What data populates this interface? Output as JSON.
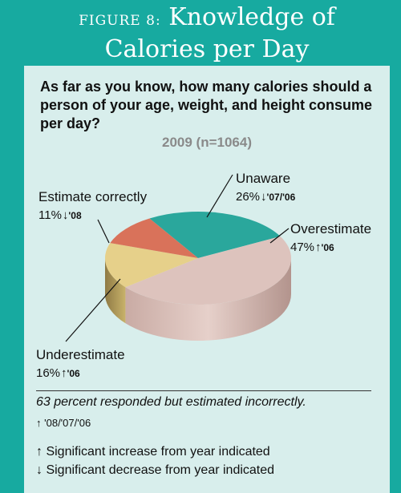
{
  "header": {
    "figure_prefix": "FIGURE 8:",
    "title_line1": "Knowledge of",
    "title_line2": "Calories per Day"
  },
  "question": "As far as you know, how many calories should a person of your age, weight, and height consume per day?",
  "colors": {
    "teal": "#17aaa0",
    "panel": "#d8eeec",
    "unaware": "#2aa79c",
    "overestimate": "#ddc3bd",
    "underestimate": "#e6d08a",
    "estimate_correctly": "#d9725a"
  },
  "chart_data": {
    "type": "pie",
    "title": "2009 (n=1064)",
    "slices": [
      {
        "label": "Unaware",
        "value": 26,
        "value_text": "26%",
        "arrow": "down",
        "years": "'07/'06"
      },
      {
        "label": "Overestimate",
        "value": 47,
        "value_text": "47%",
        "arrow": "up",
        "years": "'06"
      },
      {
        "label": "Underestimate",
        "value": 16,
        "value_text": "16%",
        "arrow": "up",
        "years": "'06"
      },
      {
        "label": "Estimate correctly",
        "value": 11,
        "value_text": "11%",
        "arrow": "down",
        "years": "'08"
      }
    ]
  },
  "summary": {
    "text": "63 percent responded but estimated incorrectly.",
    "arrow": "up",
    "years": "'08/'07/'06"
  },
  "legend": {
    "increase": "Significant increase from year indicated",
    "decrease": "Significant decrease from year indicated"
  }
}
